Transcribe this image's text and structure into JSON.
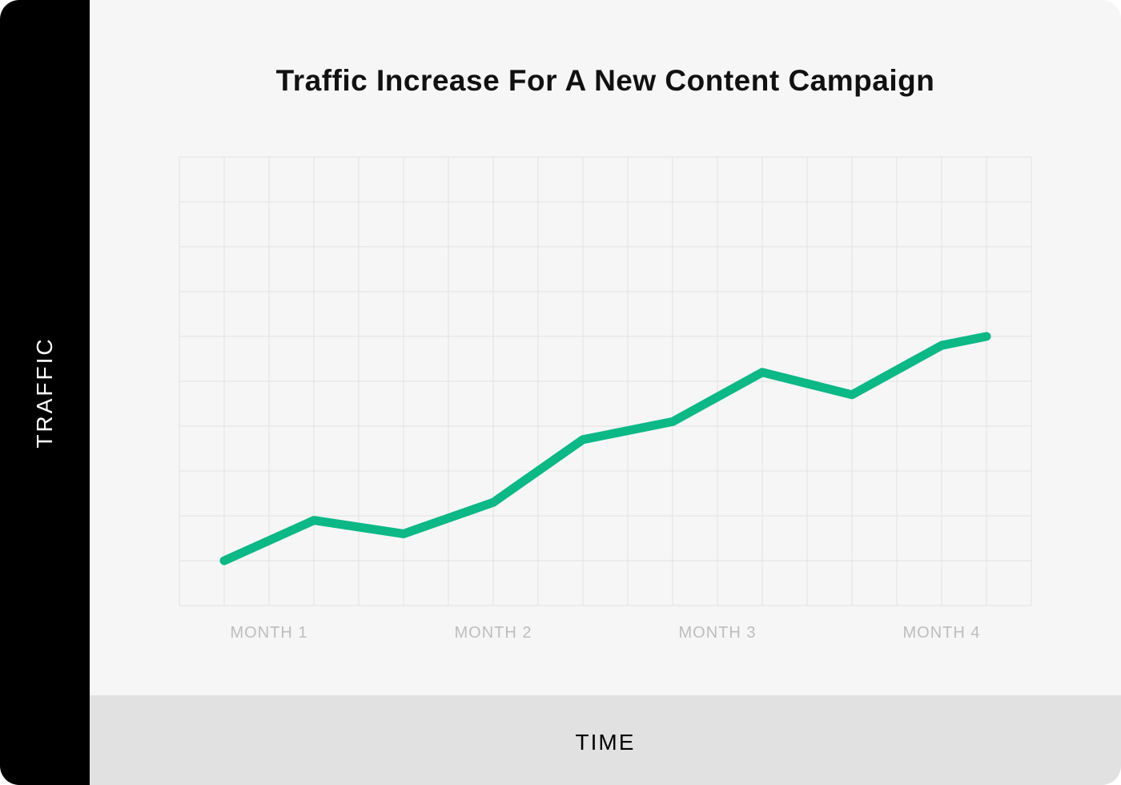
{
  "chart_data": {
    "type": "line",
    "title": "Traffic Increase For A New Content Campaign",
    "xlabel": "TIME",
    "ylabel": "TRAFFIC",
    "x_tick_labels": [
      "MONTH 1",
      "MONTH 2",
      "MONTH 3",
      "MONTH 4"
    ],
    "x_tick_positions": [
      2,
      7,
      12,
      17
    ],
    "xlim": [
      0,
      19
    ],
    "ylim": [
      0,
      10
    ],
    "grid": true,
    "series": [
      {
        "x": [
          1,
          3,
          5,
          7,
          9,
          11,
          13,
          15,
          17,
          18
        ],
        "values": [
          1.0,
          1.9,
          1.6,
          2.3,
          3.7,
          4.1,
          5.2,
          4.7,
          5.8,
          6.0
        ],
        "color": "#0bb886"
      }
    ]
  }
}
